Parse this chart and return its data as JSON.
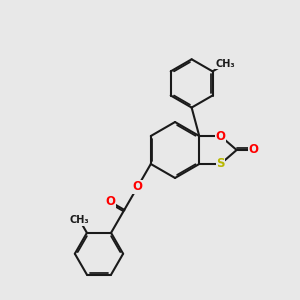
{
  "background_color": "#e8e8e8",
  "bond_color": "#1a1a1a",
  "bond_width": 1.5,
  "atom_colors": {
    "O": "#ff0000",
    "S": "#b8b800",
    "C": "#1a1a1a"
  },
  "font_size_atom": 8.5,
  "dbo": 0.055
}
